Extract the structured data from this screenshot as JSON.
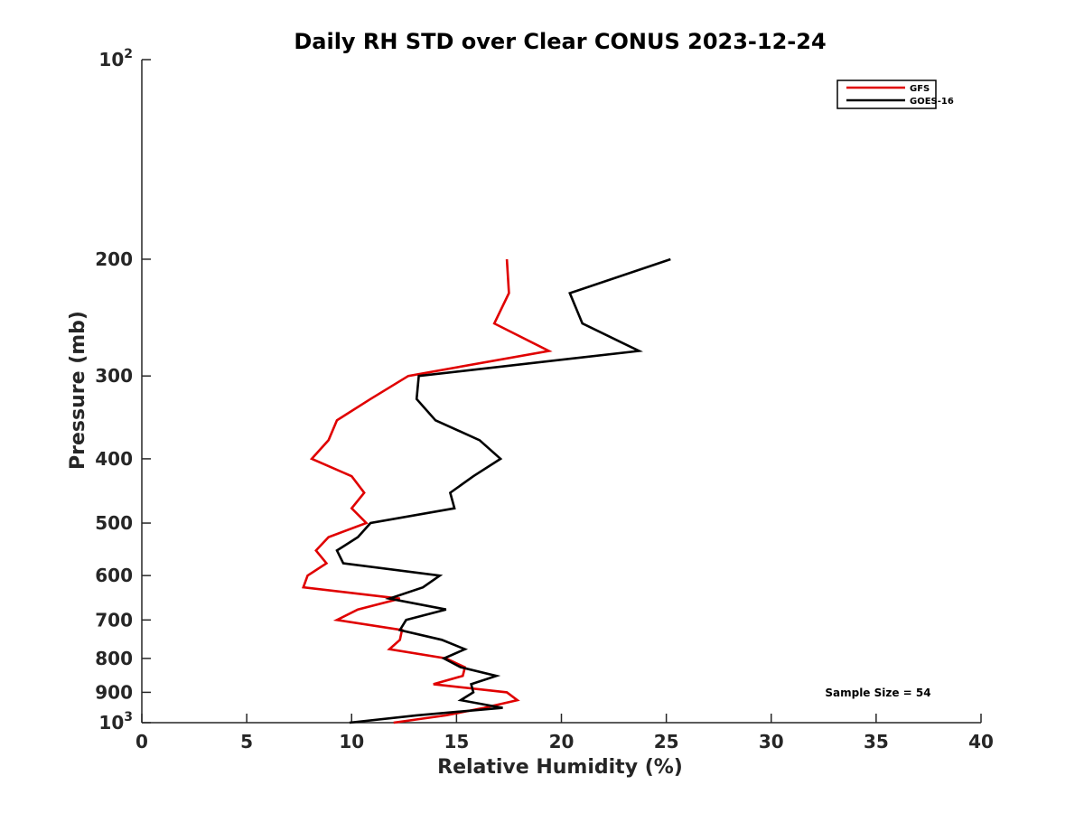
{
  "chart_data": {
    "type": "line",
    "title": "Daily RH STD over Clear CONUS 2023-12-24",
    "xlabel": "Relative Humidity (%)",
    "ylabel": "Pressure (mb)",
    "xlim": [
      0,
      40
    ],
    "ylim": [
      100,
      1000
    ],
    "y_scale": "log",
    "y_reversed": true,
    "grid": false,
    "x_ticks": [
      {
        "value": 0,
        "label": "0"
      },
      {
        "value": 5,
        "label": "5"
      },
      {
        "value": 10,
        "label": "10"
      },
      {
        "value": 15,
        "label": "15"
      },
      {
        "value": 20,
        "label": "20"
      },
      {
        "value": 25,
        "label": "25"
      },
      {
        "value": 30,
        "label": "30"
      },
      {
        "value": 35,
        "label": "35"
      },
      {
        "value": 40,
        "label": "40"
      }
    ],
    "y_ticks": [
      {
        "value": 100,
        "base": "10",
        "exp": "2"
      },
      {
        "value": 200,
        "label": "200"
      },
      {
        "value": 300,
        "label": "300"
      },
      {
        "value": 400,
        "label": "400"
      },
      {
        "value": 500,
        "label": "500"
      },
      {
        "value": 600,
        "label": "600"
      },
      {
        "value": 700,
        "label": "700"
      },
      {
        "value": 800,
        "label": "800"
      },
      {
        "value": 900,
        "label": "900"
      },
      {
        "value": 1000,
        "base": "10",
        "exp": "3"
      }
    ],
    "legend_position": "top-right",
    "annotation": "Sample Size = 54",
    "series": [
      {
        "name": "GFS",
        "color": "#e00000",
        "points": [
          [
            17.4,
            200
          ],
          [
            17.5,
            225
          ],
          [
            16.8,
            250
          ],
          [
            19.4,
            275
          ],
          [
            12.7,
            300
          ],
          [
            10.9,
            325
          ],
          [
            9.3,
            350
          ],
          [
            8.9,
            375
          ],
          [
            8.1,
            400
          ],
          [
            10.0,
            425
          ],
          [
            10.6,
            450
          ],
          [
            10.0,
            475
          ],
          [
            10.7,
            500
          ],
          [
            8.9,
            525
          ],
          [
            8.3,
            550
          ],
          [
            8.8,
            575
          ],
          [
            7.9,
            600
          ],
          [
            7.7,
            625
          ],
          [
            12.3,
            650
          ],
          [
            10.3,
            675
          ],
          [
            9.3,
            700
          ],
          [
            12.4,
            725
          ],
          [
            12.3,
            750
          ],
          [
            11.8,
            775
          ],
          [
            14.5,
            800
          ],
          [
            15.4,
            825
          ],
          [
            15.3,
            850
          ],
          [
            13.9,
            875
          ],
          [
            17.4,
            900
          ],
          [
            17.9,
            925
          ],
          [
            16.3,
            950
          ],
          [
            14.5,
            975
          ],
          [
            12.0,
            1000
          ]
        ]
      },
      {
        "name": "GOES-16",
        "color": "#000000",
        "points": [
          [
            25.2,
            200
          ],
          [
            20.4,
            225
          ],
          [
            21.0,
            250
          ],
          [
            23.7,
            275
          ],
          [
            13.2,
            300
          ],
          [
            13.1,
            325
          ],
          [
            14.0,
            350
          ],
          [
            16.1,
            375
          ],
          [
            17.1,
            400
          ],
          [
            15.8,
            425
          ],
          [
            14.7,
            450
          ],
          [
            14.9,
            475
          ],
          [
            10.9,
            500
          ],
          [
            10.3,
            525
          ],
          [
            9.3,
            550
          ],
          [
            9.6,
            575
          ],
          [
            14.2,
            600
          ],
          [
            13.4,
            625
          ],
          [
            11.8,
            650
          ],
          [
            14.5,
            675
          ],
          [
            12.6,
            700
          ],
          [
            12.3,
            725
          ],
          [
            14.3,
            750
          ],
          [
            15.4,
            775
          ],
          [
            14.4,
            800
          ],
          [
            15.2,
            825
          ],
          [
            16.9,
            850
          ],
          [
            15.7,
            875
          ],
          [
            15.8,
            900
          ],
          [
            15.2,
            925
          ],
          [
            17.2,
            950
          ],
          [
            13.1,
            975
          ],
          [
            9.9,
            1000
          ]
        ]
      }
    ]
  }
}
